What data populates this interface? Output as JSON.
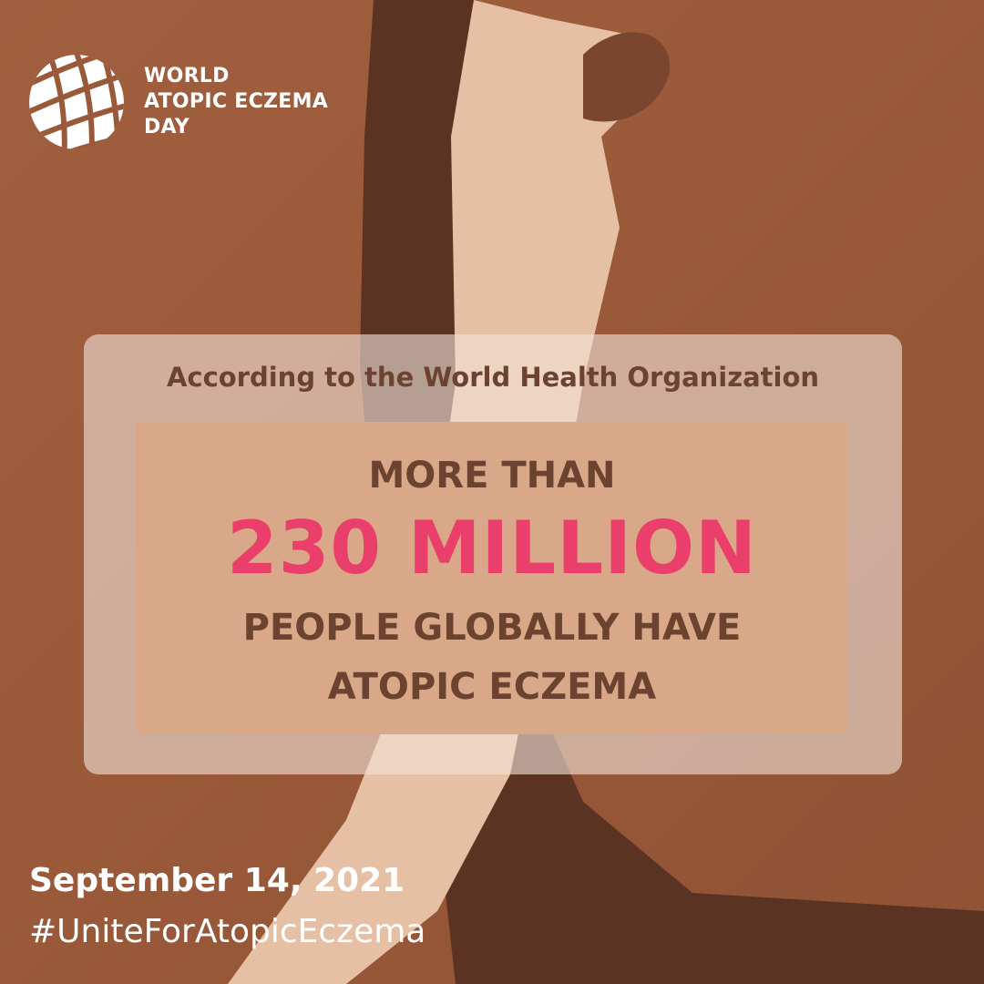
{
  "logo": {
    "icon": "globe-grid-icon",
    "lines": [
      "WORLD",
      "ATOPIC ECZEMA",
      "DAY"
    ]
  },
  "card": {
    "source": "According to the World Health Organization",
    "line1": "MORE THAN",
    "line2": "230 MILLION",
    "line3": "PEOPLE GLOBALLY HAVE",
    "line4": "ATOPIC ECZEMA"
  },
  "footer": {
    "date": "September 14, 2021",
    "hashtag": "#UniteForAtopicEczema"
  },
  "colors": {
    "background": "#9a5a3a",
    "accent": "#ea3f6a",
    "text_brown": "#6b4330",
    "inner_box": "#d9a888"
  }
}
